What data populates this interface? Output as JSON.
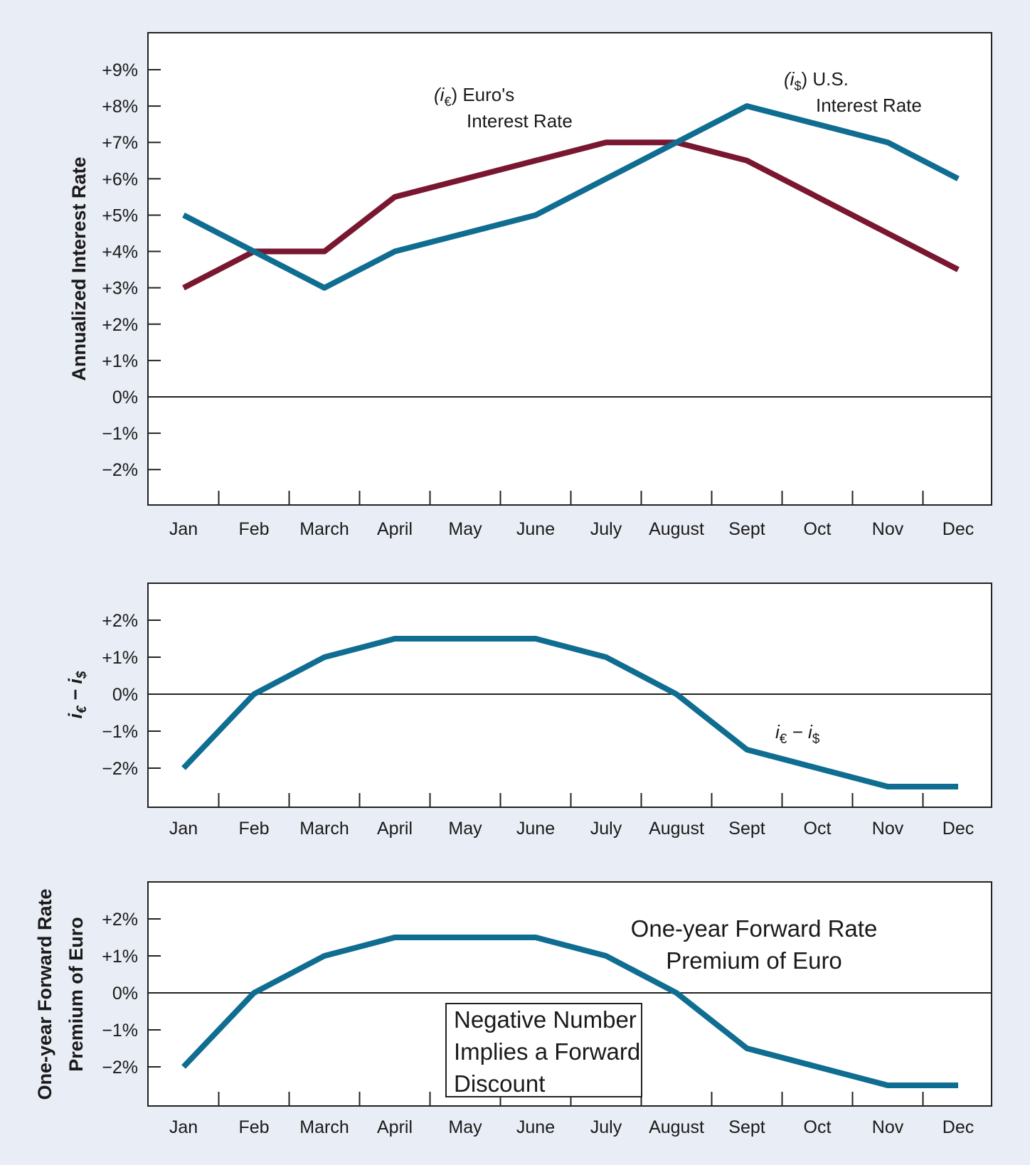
{
  "chart_data": [
    {
      "type": "line",
      "categories": [
        "Jan",
        "Feb",
        "March",
        "April",
        "May",
        "June",
        "July",
        "August",
        "Sept",
        "Oct",
        "Nov",
        "Dec"
      ],
      "ylabel": "Annualized Interest Rate",
      "yticks": [
        "+9%",
        "+8%",
        "+7%",
        "+6%",
        "+5%",
        "+4%",
        "+3%",
        "+2%",
        "+1%",
        "0%",
        "−1%",
        "−2%"
      ],
      "ytick_values": [
        9,
        8,
        7,
        6,
        5,
        4,
        3,
        2,
        1,
        0,
        -1,
        -2
      ],
      "ylim": [
        -3,
        10
      ],
      "grid": false,
      "series": [
        {
          "name": "Euro's Interest Rate",
          "color": "#7a1730",
          "values": [
            3,
            4,
            4,
            5.5,
            6,
            6.5,
            7,
            7,
            6.5,
            5.5,
            4.5,
            3.5
          ]
        },
        {
          "name": "U.S. Interest Rate",
          "color": "#0f6d91",
          "values": [
            5,
            4,
            3,
            4,
            4.5,
            5,
            6,
            7,
            8,
            7.5,
            7,
            6
          ]
        }
      ],
      "annotations": {
        "euro_symbol_open": "(i",
        "euro_symbol_sub": "€",
        "euro_symbol_close": ") Euro's",
        "euro_line2": "Interest Rate",
        "us_symbol_open": "(i",
        "us_symbol_sub": "$",
        "us_symbol_close": ") U.S.",
        "us_line2": "Interest Rate"
      }
    },
    {
      "type": "line",
      "categories": [
        "Jan",
        "Feb",
        "March",
        "April",
        "May",
        "June",
        "July",
        "August",
        "Sept",
        "Oct",
        "Nov",
        "Dec"
      ],
      "ylabel_main": "i",
      "ylabel_sub1": "€",
      "ylabel_dash": " − i",
      "ylabel_sub2": "$",
      "yticks": [
        "+2%",
        "+1%",
        "0%",
        "−1%",
        "−2%"
      ],
      "ytick_values": [
        2,
        1,
        0,
        -1,
        -2
      ],
      "ylim": [
        -3,
        3
      ],
      "grid": false,
      "series": [
        {
          "name": "i€ − i$",
          "color": "#0f6d91",
          "values": [
            -2,
            0,
            1,
            1.5,
            1.5,
            1.5,
            1,
            0,
            -1.5,
            -2,
            -2.5,
            -2.5
          ]
        }
      ],
      "annotations": {
        "diff_i1": "i",
        "diff_sub1": "€",
        "diff_dash": " − i",
        "diff_sub2": "$"
      }
    },
    {
      "type": "line",
      "categories": [
        "Jan",
        "Feb",
        "March",
        "April",
        "May",
        "June",
        "July",
        "August",
        "Sept",
        "Oct",
        "Nov",
        "Dec"
      ],
      "ylabel_line1": "One-year Forward Rate",
      "ylabel_line2": "Premium of Euro",
      "yticks": [
        "+2%",
        "+1%",
        "0%",
        "−1%",
        "−2%"
      ],
      "ytick_values": [
        2,
        1,
        0,
        -1,
        -2
      ],
      "ylim": [
        -3,
        3
      ],
      "grid": false,
      "series": [
        {
          "name": "One-year Forward Rate Premium of Euro",
          "color": "#0f6d91",
          "values": [
            -2,
            0,
            1,
            1.5,
            1.5,
            1.5,
            1,
            0,
            -1.5,
            -2,
            -2.5,
            -2.5
          ]
        }
      ],
      "annotations": {
        "title_line1": "One-year Forward Rate",
        "title_line2": "Premium of Euro",
        "box_line1": "Negative Number",
        "box_line2": "Implies a Forward",
        "box_line3": "Discount"
      }
    }
  ]
}
